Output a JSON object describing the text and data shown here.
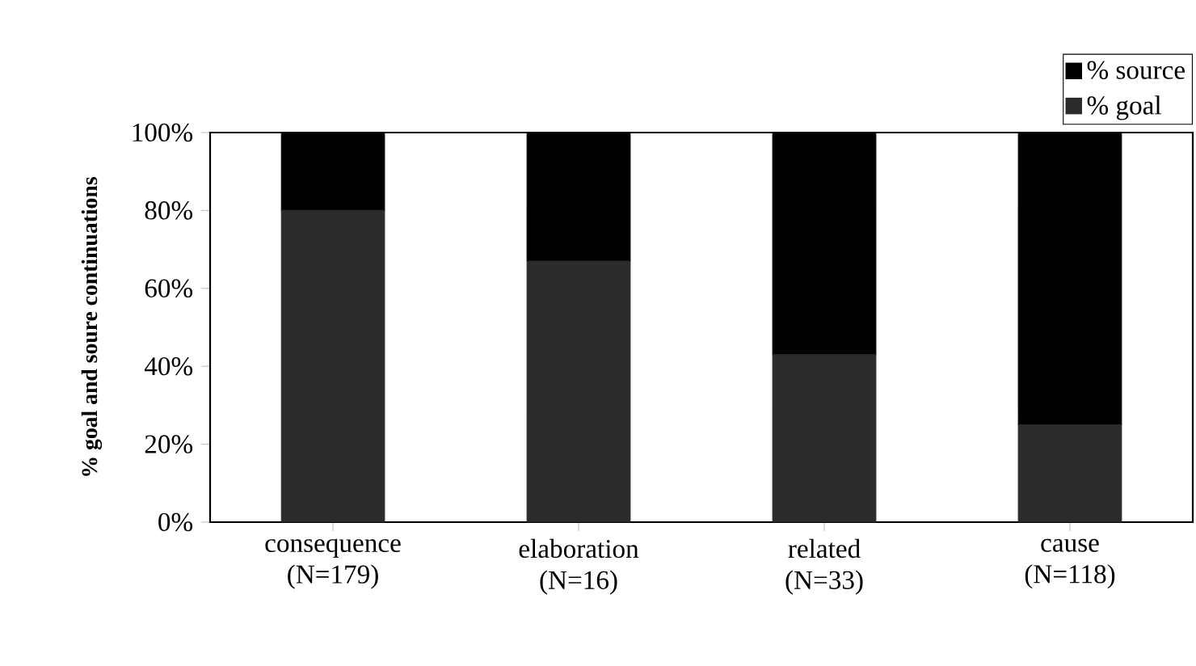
{
  "chart_data": {
    "type": "bar",
    "stacked": true,
    "ylabel": "% goal and soure continuations",
    "categories": [
      "consequence (N=179)",
      "elaboration (N=16)",
      "related (N=33)",
      "cause (N=118)"
    ],
    "series": [
      {
        "name": "% goal",
        "color": "#2b2b2b",
        "values": [
          80,
          67,
          43,
          25
        ]
      },
      {
        "name": "% source",
        "color": "#000000",
        "values": [
          20,
          33,
          57,
          75
        ]
      }
    ],
    "ylim": [
      0,
      100
    ],
    "yticks": [
      {
        "value": 0,
        "label": "0%"
      },
      {
        "value": 20,
        "label": "20%"
      },
      {
        "value": 40,
        "label": "40%"
      },
      {
        "value": 60,
        "label": "60%"
      },
      {
        "value": 80,
        "label": "80%"
      },
      {
        "value": 100,
        "label": "100%"
      }
    ],
    "legend": "top right"
  }
}
